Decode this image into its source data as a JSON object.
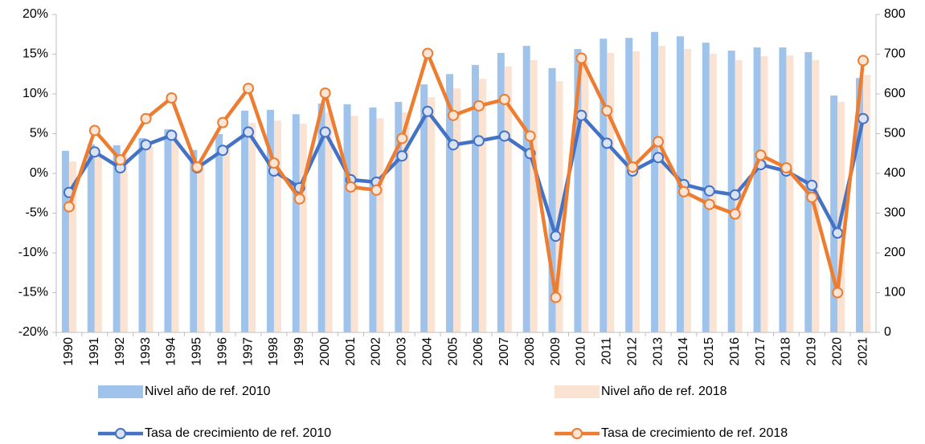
{
  "chart_data": {
    "type": "bar",
    "categories": [
      "1990",
      "1991",
      "1992",
      "1993",
      "1994",
      "1995",
      "1996",
      "1997",
      "1998",
      "1999",
      "2000",
      "2001",
      "2002",
      "2003",
      "2004",
      "2005",
      "2006",
      "2007",
      "2008",
      "2009",
      "2010",
      "2011",
      "2012",
      "2013",
      "2014",
      "2015",
      "2016",
      "2017",
      "2018",
      "2019",
      "2020",
      "2021"
    ],
    "series": [
      {
        "name": "Nivel año de ref. 2010",
        "type": "bar",
        "axis": "y2",
        "color": "#9fc3ea",
        "values": [
          457,
          473,
          471,
          489,
          511,
          459,
          499,
          558,
          560,
          549,
          576,
          574,
          566,
          580,
          624,
          650,
          673,
          703,
          721,
          665,
          713,
          739,
          741,
          756,
          745,
          729,
          709,
          717,
          717,
          705,
          596,
          640
        ]
      },
      {
        "name": "Nivel año de ref. 2018",
        "type": "bar",
        "axis": "y2",
        "color": "#fbe3d3",
        "values": [
          430,
          442,
          446,
          467,
          491,
          428,
          471,
          527,
          533,
          525,
          554,
          545,
          539,
          554,
          592,
          614,
          638,
          669,
          685,
          632,
          683,
          703,
          707,
          721,
          713,
          701,
          685,
          695,
          697,
          685,
          580,
          648
        ]
      },
      {
        "name": "Tasa de crecimiento de ref. 2010",
        "type": "line",
        "color": "#4472c4",
        "values": [
          -2.4,
          2.7,
          0.7,
          3.6,
          4.8,
          0.7,
          2.9,
          5.2,
          0.3,
          -1.8,
          5.2,
          -0.8,
          -1.1,
          2.2,
          7.8,
          3.6,
          4.1,
          4.7,
          2.5,
          -7.9,
          7.3,
          3.8,
          0.3,
          2.0,
          -1.4,
          -2.2,
          -2.7,
          1.1,
          0.3,
          -1.5,
          -7.5,
          6.9
        ]
      },
      {
        "name": "Tasa de crecimiento de ref. 2018",
        "type": "line",
        "color": "#ed7d31",
        "values": [
          -4.2,
          5.4,
          1.7,
          6.9,
          9.5,
          0.8,
          6.4,
          10.7,
          1.3,
          -3.2,
          10.1,
          -1.7,
          -2.1,
          4.4,
          15.1,
          7.3,
          8.5,
          9.3,
          4.7,
          -15.6,
          14.5,
          7.9,
          0.8,
          4.0,
          -2.3,
          -3.9,
          -5.1,
          2.3,
          0.7,
          -3.0,
          -15.0,
          14.2
        ]
      }
    ],
    "ylim": [
      -20,
      20
    ],
    "yticks": [
      {
        "value": -20,
        "label": "-20%"
      },
      {
        "value": -15,
        "label": "-15%"
      },
      {
        "value": -10,
        "label": "-10%"
      },
      {
        "value": -5,
        "label": "-5%"
      },
      {
        "value": 0,
        "label": "0%"
      },
      {
        "value": 5,
        "label": "5%"
      },
      {
        "value": 10,
        "label": "10%"
      },
      {
        "value": 15,
        "label": "15%"
      },
      {
        "value": 20,
        "label": "20%"
      }
    ],
    "y2lim": [
      0,
      800
    ],
    "y2ticks": [
      0,
      100,
      200,
      300,
      400,
      500,
      600,
      700,
      800
    ],
    "grid": false
  }
}
